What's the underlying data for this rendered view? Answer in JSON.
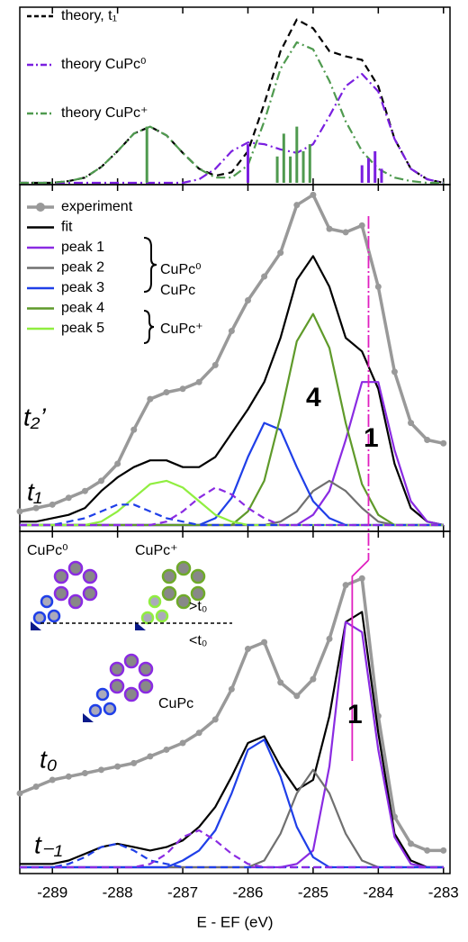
{
  "chart_data": [
    {
      "type": "line",
      "xlim": [
        -289.5,
        -282.9
      ],
      "ylim": [
        0,
        100
      ],
      "x": [
        -289.5,
        -289.25,
        -289,
        -288.75,
        -288.5,
        -288.25,
        -288,
        -287.75,
        -287.5,
        -287.25,
        -287,
        -286.75,
        -286.5,
        -286.25,
        -286,
        -285.75,
        -285.5,
        -285.25,
        -285,
        -284.75,
        -284.5,
        -284.25,
        -284,
        -283.75,
        -283.5,
        -283.25,
        -283
      ],
      "series": [
        {
          "name": "theory,  t₁",
          "color": "#000000",
          "style": "dash",
          "values": [
            0,
            0,
            0,
            1,
            3,
            9,
            18,
            28,
            32,
            27,
            17,
            8,
            4,
            6,
            18,
            45,
            75,
            93,
            88,
            75,
            72,
            70,
            55,
            25,
            8,
            2,
            0
          ]
        },
        {
          "name": "theory CuPc⁰",
          "color": "#7a1fe0",
          "style": "dashdot",
          "values": [
            0,
            0,
            0,
            0,
            0,
            0,
            0,
            0,
            0,
            0,
            0,
            2,
            8,
            18,
            23,
            22,
            19,
            17,
            22,
            38,
            55,
            62,
            52,
            25,
            8,
            2,
            0
          ]
        },
        {
          "name": "theory CuPc⁺",
          "color": "#4f9a4f",
          "style": "dashdot",
          "values": [
            0,
            0,
            0,
            1,
            3,
            9,
            18,
            28,
            32,
            27,
            17,
            8,
            3,
            3,
            10,
            35,
            65,
            80,
            76,
            58,
            35,
            18,
            8,
            3,
            1,
            0,
            0
          ]
        },
        {
          "color": "#4f9a4f",
          "style": "stick",
          "x": [
            -287.55,
            -285.55,
            -285.45,
            -285.35,
            -285.25,
            -285.15,
            -285.05
          ],
          "values": [
            32,
            15,
            28,
            15,
            32,
            18,
            22
          ]
        },
        {
          "color": "#7a1fe0",
          "style": "stick",
          "x": [
            -286.0,
            -284.25,
            -284.15,
            -284.05,
            -283.95
          ],
          "values": [
            22,
            10,
            14,
            18,
            8
          ]
        }
      ]
    },
    {
      "type": "line",
      "xlim": [
        -289.5,
        -282.9
      ],
      "ylim": [
        0,
        100
      ],
      "x": [
        -289.5,
        -289.25,
        -289,
        -288.75,
        -288.5,
        -288.25,
        -288,
        -287.75,
        -287.5,
        -287.25,
        -287,
        -286.75,
        -286.5,
        -286.25,
        -286,
        -285.75,
        -285.5,
        -285.25,
        -285,
        -284.75,
        -284.5,
        -284.25,
        -284,
        -283.75,
        -283.5,
        -283.25,
        -283
      ],
      "series": [
        {
          "name": "experiment",
          "color": "#999999",
          "style": "dots",
          "values": [
            4,
            5,
            6,
            8,
            10,
            13,
            18,
            28,
            37,
            39,
            40,
            42,
            47,
            57,
            66,
            73,
            80,
            94,
            97,
            87,
            86,
            88,
            70,
            45,
            30,
            25,
            24
          ]
        },
        {
          "name": "fit",
          "color": "#000000",
          "style": "solid",
          "values": [
            1,
            1,
            2,
            3,
            5,
            10,
            14,
            17,
            19,
            19,
            17,
            17,
            20,
            27,
            34,
            42,
            55,
            72,
            79,
            70,
            55,
            51,
            40,
            18,
            5,
            1,
            0
          ]
        },
        {
          "name": "peak 1",
          "color": "#8a2be2",
          "style": "solid",
          "values": [
            0,
            0,
            0,
            0,
            0,
            0,
            0,
            0,
            0,
            0,
            0,
            0,
            0,
            0,
            0,
            0,
            0,
            0,
            3,
            10,
            25,
            42,
            42,
            22,
            7,
            1,
            0
          ]
        },
        {
          "name": "peak 2",
          "color": "#707070",
          "style": "solid",
          "values": [
            0,
            0,
            0,
            0,
            0,
            0,
            0,
            0,
            0,
            0,
            0,
            0,
            0,
            0,
            0,
            0,
            1,
            4,
            10,
            13,
            10,
            5,
            1,
            0,
            0,
            0,
            0
          ]
        },
        {
          "name": "peak 3",
          "color": "#1f3fe8",
          "style": "solid",
          "values": [
            0,
            0,
            0,
            0,
            0,
            0,
            0,
            0,
            0,
            0,
            0,
            0,
            2,
            8,
            20,
            30,
            28,
            17,
            7,
            2,
            0,
            0,
            0,
            0,
            0,
            0,
            0
          ]
        },
        {
          "name": "peak 4",
          "color": "#5f9a2a",
          "style": "solid",
          "values": [
            0,
            0,
            0,
            0,
            0,
            0,
            0,
            0,
            0,
            0,
            0,
            0,
            0,
            0,
            4,
            13,
            32,
            54,
            62,
            52,
            30,
            12,
            3,
            0,
            0,
            0,
            0
          ]
        },
        {
          "name": "peak 5",
          "color": "#90ee40",
          "style": "solid",
          "values": [
            0,
            0,
            0,
            0,
            0,
            1,
            4,
            8,
            12,
            13,
            11,
            7,
            3,
            1,
            0,
            0,
            0,
            0,
            0,
            0,
            0,
            0,
            0,
            0,
            0,
            0,
            0
          ]
        },
        {
          "color": "#1f3fe8",
          "style": "dash",
          "values": [
            0,
            0,
            0,
            1,
            2,
            4,
            6,
            6,
            4,
            2,
            1,
            0,
            0,
            0,
            0,
            0,
            0,
            0,
            0,
            0,
            0,
            0,
            0,
            0,
            0,
            0,
            0
          ]
        },
        {
          "color": "#8a2be2",
          "style": "dash",
          "values": [
            0,
            0,
            0,
            0,
            0,
            0,
            0,
            0,
            0,
            1,
            4,
            8,
            11,
            9,
            5,
            2,
            0,
            0,
            0,
            0,
            0,
            0,
            0,
            0,
            0,
            0,
            0
          ]
        }
      ],
      "vlines": [
        {
          "x": -284.15,
          "color": "#e020c0"
        }
      ],
      "annotations": [
        "t₂’",
        "t₁",
        "4",
        "1",
        "CuPc⁰",
        "CuPc",
        "CuPc⁺"
      ]
    },
    {
      "type": "line",
      "xlim": [
        -289.5,
        -282.9
      ],
      "ylim": [
        0,
        100
      ],
      "xticks": [
        -289,
        -288,
        -287,
        -286,
        -285,
        -284,
        -283
      ],
      "xlabel": "E - EF (eV)",
      "x": [
        -289.5,
        -289.25,
        -289,
        -288.75,
        -288.5,
        -288.25,
        -288,
        -287.75,
        -287.5,
        -287.25,
        -287,
        -286.75,
        -286.5,
        -286.25,
        -286,
        -285.75,
        -285.5,
        -285.25,
        -285,
        -284.75,
        -284.5,
        -284.25,
        -284,
        -283.75,
        -283.5,
        -283.25,
        -283
      ],
      "series": [
        {
          "color": "#999999",
          "style": "dots",
          "values": [
            22,
            24,
            26,
            27,
            28,
            29,
            30,
            31,
            33,
            35,
            37,
            40,
            44,
            53,
            65,
            67,
            55,
            51,
            56,
            68,
            84,
            86,
            45,
            15,
            7,
            5,
            5
          ]
        },
        {
          "color": "#000000",
          "style": "solid",
          "values": [
            1,
            1,
            1,
            2,
            4,
            6,
            7,
            6,
            5,
            6,
            8,
            12,
            18,
            27,
            37,
            39,
            30,
            23,
            26,
            45,
            73,
            76,
            40,
            10,
            2,
            0,
            0
          ]
        },
        {
          "color": "#8a2be2",
          "style": "solid",
          "values": [
            0,
            0,
            0,
            0,
            0,
            0,
            0,
            0,
            0,
            0,
            0,
            0,
            0,
            0,
            0,
            0,
            0,
            1,
            5,
            30,
            73,
            70,
            35,
            9,
            1,
            0,
            0
          ]
        },
        {
          "color": "#707070",
          "style": "solid",
          "values": [
            0,
            0,
            0,
            0,
            0,
            0,
            0,
            0,
            0,
            0,
            0,
            0,
            0,
            0,
            0,
            2,
            10,
            22,
            29,
            22,
            10,
            2,
            0,
            0,
            0,
            0,
            0
          ]
        },
        {
          "color": "#1f3fe8",
          "style": "solid",
          "values": [
            0,
            0,
            0,
            0,
            0,
            0,
            0,
            0,
            0,
            0,
            2,
            5,
            11,
            22,
            35,
            38,
            27,
            12,
            3,
            0,
            0,
            0,
            0,
            0,
            0,
            0,
            0
          ]
        },
        {
          "color": "#1f3fe8",
          "style": "dash",
          "values": [
            0,
            0,
            0,
            1,
            3,
            6,
            7,
            5,
            2,
            1,
            0,
            0,
            0,
            0,
            0,
            0,
            0,
            0,
            0,
            0,
            0,
            0,
            0,
            0,
            0,
            0,
            0
          ]
        },
        {
          "color": "#8a2be2",
          "style": "dash",
          "values": [
            0,
            0,
            0,
            0,
            0,
            0,
            0,
            0,
            1,
            4,
            9,
            11,
            8,
            4,
            1,
            0,
            0,
            0,
            0,
            0,
            0,
            0,
            0,
            0,
            0,
            0,
            0
          ]
        }
      ],
      "vlines": [
        {
          "x": -284.4,
          "color": "#e020c0"
        }
      ],
      "annotations": [
        "t₀",
        "t₋₁",
        "1",
        "CuPc⁰",
        "CuPc⁺",
        ">t₀",
        "<t₀",
        "CuPc"
      ]
    }
  ]
}
